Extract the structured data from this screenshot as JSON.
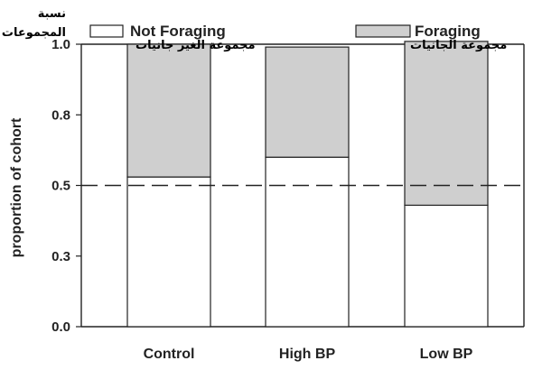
{
  "chart_data": {
    "type": "bar",
    "stacked": true,
    "categories": [
      "Control",
      "High BP",
      "Low BP"
    ],
    "series": [
      {
        "name": "Not Foraging",
        "name_ar": "مجموعة الغير جانيات",
        "color": "#ffffff",
        "values": [
          0.53,
          0.6,
          0.43
        ]
      },
      {
        "name": "Foraging",
        "name_ar": "مجموعة الجانيات",
        "color": "#cfcfcf",
        "values": [
          0.47,
          0.39,
          0.58
        ]
      }
    ],
    "ylabel": "proportion of cohort",
    "ylabel_ar": "نسبة المجموعات",
    "yticks": [
      "0.0",
      "0.3",
      "0.5",
      "0.8",
      "1.0"
    ],
    "ytick_values": [
      0,
      0.25,
      0.5,
      0.75,
      1
    ],
    "ylim": [
      0,
      1.0
    ],
    "reference_line": 0.5,
    "legend_position": "top",
    "grid": false
  }
}
